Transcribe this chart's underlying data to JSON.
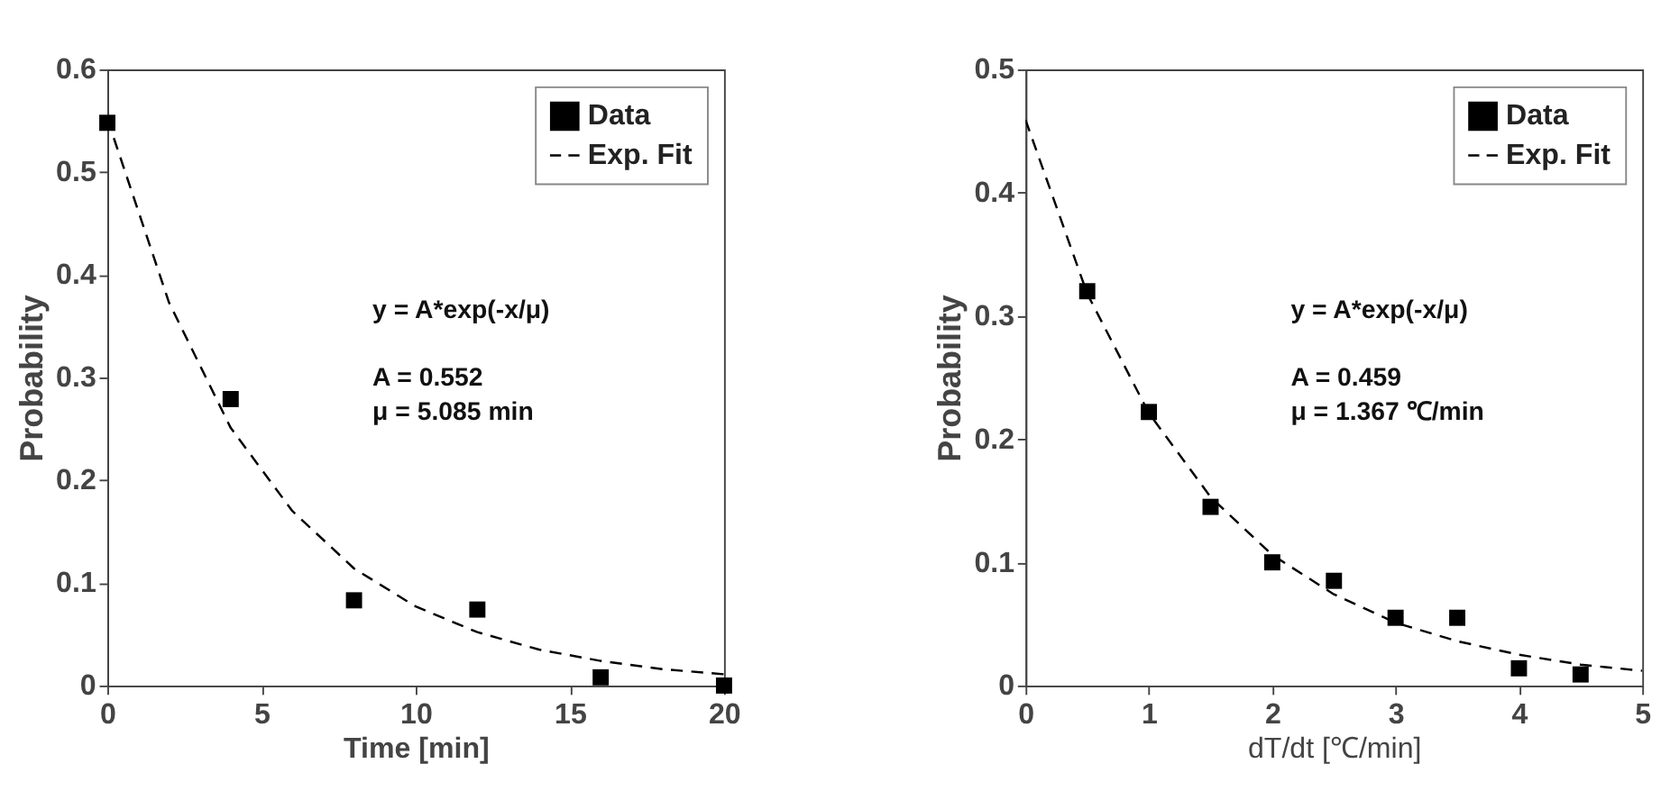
{
  "chart_data": [
    {
      "type": "scatter",
      "xlabel": "Time [min]",
      "ylabel": "Probability",
      "xlim": [
        0,
        20
      ],
      "ylim": [
        0,
        0.6
      ],
      "xticks": [
        0,
        5,
        10,
        15,
        20
      ],
      "yticks": [
        0,
        0.1,
        0.2,
        0.3,
        0.4,
        0.5,
        0.6
      ],
      "grid": false,
      "legend": "top right",
      "annotations": [
        "y = A*exp(-x/μ)",
        "A = 0.552",
        "μ = 5.085 min"
      ],
      "series": [
        {
          "name": "Data",
          "marker": "square",
          "color": "#000000",
          "x": [
            0,
            4,
            8,
            12,
            16,
            20
          ],
          "values": [
            0.548,
            0.279,
            0.083,
            0.074,
            0.008,
            0.0
          ]
        },
        {
          "name": "Exp. Fit",
          "type": "line",
          "line_style": "dashed",
          "color": "#000000",
          "x": [
            0,
            2,
            4,
            6,
            8,
            10,
            12,
            14,
            16,
            18,
            20
          ],
          "values": [
            0.552,
            0.373,
            0.251,
            0.17,
            0.114,
            0.077,
            0.052,
            0.035,
            0.024,
            0.016,
            0.011
          ]
        }
      ]
    },
    {
      "type": "scatter",
      "xlabel": "dT/dt [℃/min]",
      "ylabel": "Probability",
      "xlim": [
        0,
        5
      ],
      "ylim": [
        0,
        0.5
      ],
      "xticks": [
        0,
        1,
        2,
        3,
        4,
        5
      ],
      "yticks": [
        0,
        0.1,
        0.2,
        0.3,
        0.4,
        0.5
      ],
      "grid": false,
      "legend": "top right",
      "annotations": [
        "y = A*exp(-x/μ)",
        "A = 0.459",
        "μ = 1.367 ℃/min"
      ],
      "series": [
        {
          "name": "Data",
          "marker": "square",
          "color": "#000000",
          "x": [
            0.5,
            1,
            1.5,
            2,
            2.5,
            3,
            3.5,
            4,
            4.5
          ],
          "values": [
            0.32,
            0.222,
            0.145,
            0.1,
            0.085,
            0.055,
            0.055,
            0.014,
            0.009
          ]
        },
        {
          "name": "Exp. Fit",
          "type": "line",
          "line_style": "dashed",
          "color": "#000000",
          "x": [
            0,
            0.5,
            1,
            1.5,
            2,
            2.5,
            3,
            3.5,
            4,
            4.5,
            5
          ],
          "values": [
            0.459,
            0.318,
            0.221,
            0.153,
            0.106,
            0.074,
            0.051,
            0.036,
            0.025,
            0.017,
            0.012
          ]
        }
      ]
    }
  ]
}
